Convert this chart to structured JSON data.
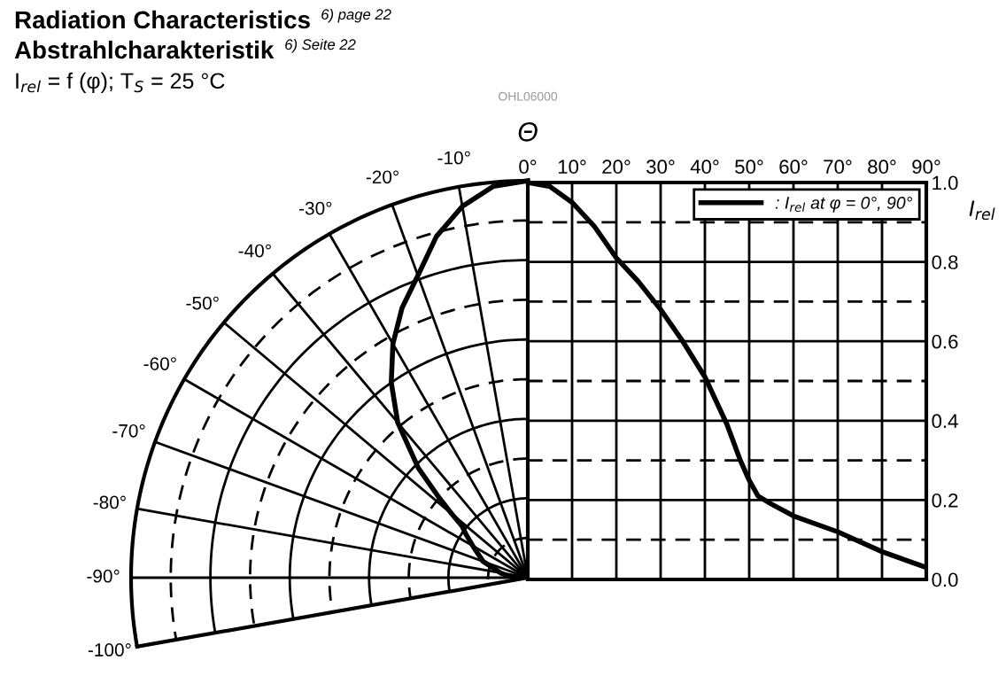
{
  "chart_data": [
    {
      "type": "other",
      "title": "Radiation Characteristics $^{6) page 22}$",
      "subtitle": "Abstrahlcharakteristik $^{6) Seite 22}$",
      "annotations": [
        "-10°",
        "-20°",
        "-30°",
        "-40°",
        "-50°",
        "-60°",
        "-70°",
        "-80°",
        "-90°",
        "-100°"
      ]
    },
    {
      "type": "line",
      "xlabel": "Θ",
      "ylabel": "I$_{rel}$",
      "annotations": [
        "I$_{rel}$ = f (φ); T$_{S}$ = 25 °C",
        "OHL06000"
      ],
      "x": [
        0,
        5,
        10,
        15,
        20,
        25,
        30,
        35,
        40,
        45,
        48,
        50,
        52,
        55,
        60,
        70,
        80,
        85,
        90
      ],
      "series": [
        {
          "name": ": I$_{rel}$ at φ = 0°, 90°",
          "color": "#000000",
          "values": [
            1.0,
            0.99,
            0.95,
            0.89,
            0.81,
            0.75,
            0.68,
            0.6,
            0.51,
            0.39,
            0.3,
            0.25,
            0.21,
            0.19,
            0.16,
            0.12,
            0.07,
            0.05,
            0.03
          ]
        }
      ],
      "xlim": [
        0,
        90
      ],
      "xticks": [
        {
          "value": 0,
          "label": "0°"
        },
        {
          "value": 10,
          "label": "10°"
        },
        {
          "value": 20,
          "label": "20°"
        },
        {
          "value": 30,
          "label": "30°"
        },
        {
          "value": 40,
          "label": "40°"
        },
        {
          "value": 50,
          "label": "50°"
        },
        {
          "value": 60,
          "label": "60°"
        },
        {
          "value": 70,
          "label": "70°"
        },
        {
          "value": 80,
          "label": "80°"
        },
        {
          "value": 90,
          "label": "90°"
        }
      ],
      "ylim": [
        0,
        1.0
      ],
      "yticks": [
        {
          "value": 0.0,
          "label": "0.0"
        },
        {
          "value": 0.1,
          "label": null
        },
        {
          "value": 0.2,
          "label": "0.2"
        },
        {
          "value": 0.3,
          "label": null
        },
        {
          "value": 0.4,
          "label": "0.4"
        },
        {
          "value": 0.5,
          "label": null
        },
        {
          "value": 0.6,
          "label": "0.6"
        },
        {
          "value": 0.7,
          "label": null
        },
        {
          "value": 0.8,
          "label": "0.8"
        },
        {
          "value": 0.9,
          "label": null
        },
        {
          "value": 1.0,
          "label": "1.0"
        }
      ],
      "grid": true,
      "legend": "top right"
    }
  ]
}
